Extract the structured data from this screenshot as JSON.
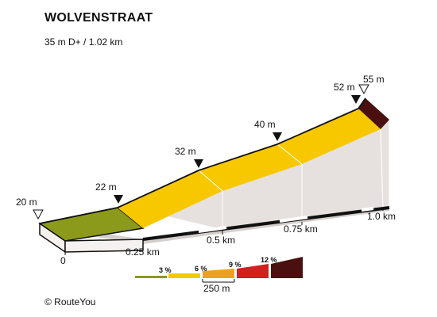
{
  "header": {
    "title": "WOLVENSTRAAT",
    "subtitle": "35 m D+ / 1.02 km"
  },
  "footer": {
    "credit": "©  RouteYou"
  },
  "profile": {
    "elevation_labels": [
      "20 m",
      "22 m",
      "32 m",
      "40 m",
      "52 m",
      "55 m"
    ],
    "distance_labels": [
      "0",
      "0.25 km",
      "0.5 km",
      "0.75 km",
      "1.0 km"
    ],
    "segments": [
      {
        "grade": "3 %",
        "color": "#8b9a1a"
      },
      {
        "grade": "6 %",
        "color": "#f7c800"
      },
      {
        "grade": "6 %",
        "color": "#f7c800"
      },
      {
        "grade": "6 %",
        "color": "#f7c800"
      },
      {
        "grade": "12 %",
        "color": "#4a1010"
      }
    ]
  },
  "legend": {
    "items": [
      {
        "label": "3 %",
        "color": "#8b9a1a"
      },
      {
        "label": "6 %",
        "color": "#f7c800"
      },
      {
        "label": "9 %",
        "color": "#f0a020"
      },
      {
        "label": "12 %",
        "color": "#d02020"
      },
      {
        "label": "",
        "color": "#4a1010"
      }
    ],
    "scale_label": "250 m"
  },
  "colors": {
    "wall": "#e6e1df",
    "base_shadow": "#c9c4c2",
    "base_front": "#f4f1ef",
    "outline": "#111111"
  }
}
